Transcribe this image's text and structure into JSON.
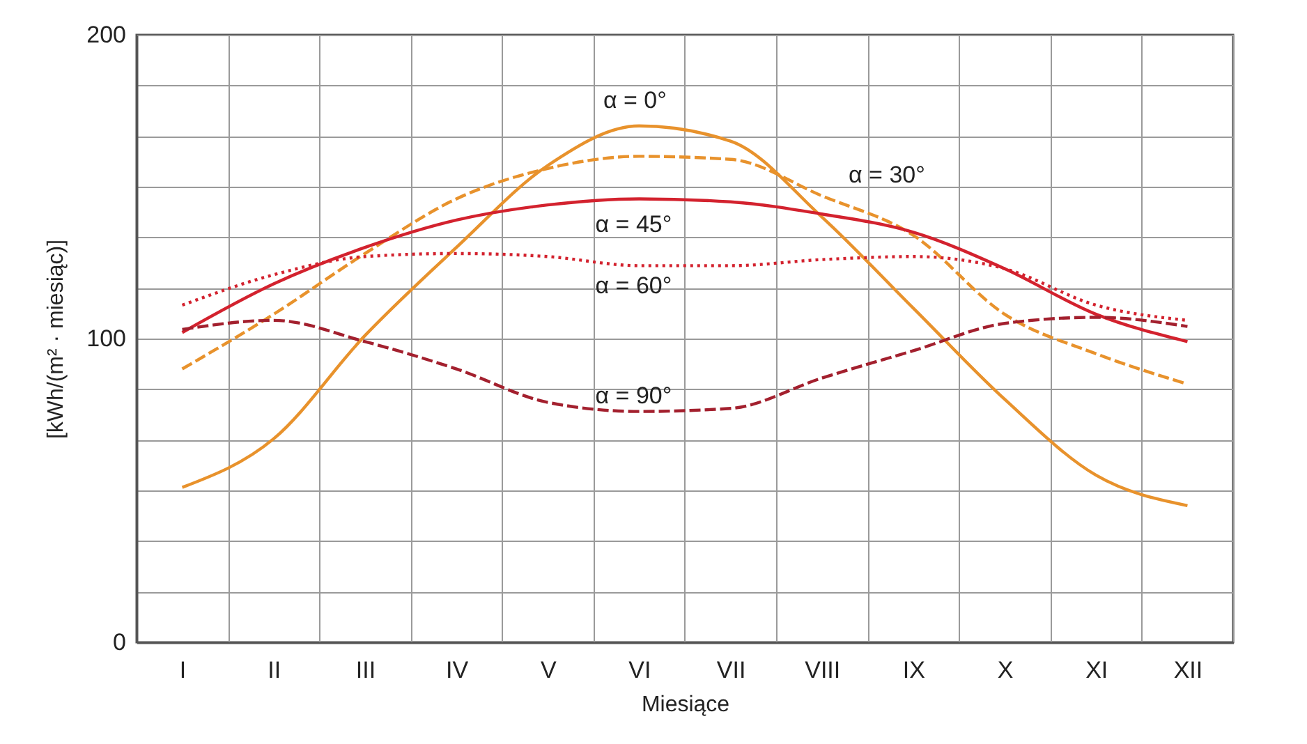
{
  "chart_data": {
    "type": "line",
    "xlabel": "Miesiące",
    "ylabel": "[kWh/(m² · miesiąc)]",
    "categories": [
      "I",
      "II",
      "III",
      "IV",
      "V",
      "VI",
      "VII",
      "VIII",
      "IX",
      "X",
      "XI",
      "XII"
    ],
    "ylim": [
      0,
      200
    ],
    "yticks": [
      0,
      {
        "value": 16.7,
        "label": null
      },
      {
        "value": 33.3,
        "label": null
      },
      {
        "value": 50,
        "label": null
      },
      {
        "value": 66.7,
        "label": null
      },
      {
        "value": 83.3,
        "label": null
      },
      100,
      {
        "value": 116.7,
        "label": null
      },
      {
        "value": 133.3,
        "label": null
      },
      {
        "value": 150,
        "label": null
      },
      {
        "value": 166.7,
        "label": null
      },
      {
        "value": 183.3,
        "label": null
      },
      200
    ],
    "grid": true,
    "series": [
      {
        "name": "α = 0°",
        "color": "#e8922c",
        "line_style": "solid",
        "values": [
          51,
          67,
          101,
          130,
          157,
          170,
          165,
          140,
          110,
          80,
          55,
          45
        ]
      },
      {
        "name": "α = 30°",
        "color": "#e8922c",
        "line_style": "dashed",
        "values": [
          90,
          108,
          128,
          146,
          156,
          160,
          159,
          147,
          134,
          108,
          95,
          85
        ]
      },
      {
        "name": "α = 45°",
        "color": "#d3222e",
        "line_style": "solid",
        "values": [
          102,
          118,
          130,
          139,
          144,
          146,
          145,
          141,
          135,
          123,
          108,
          99
        ]
      },
      {
        "name": "α = 60°",
        "color": "#d3222e",
        "line_style": "dotted",
        "values": [
          111,
          121,
          127,
          128,
          127,
          124,
          124,
          126,
          127,
          123,
          111,
          106
        ]
      },
      {
        "name": "α = 90°",
        "color": "#a3202e",
        "line_style": "dashed",
        "values": [
          103,
          106,
          99,
          90,
          79,
          76,
          77,
          87,
          96,
          105,
          107,
          104
        ]
      }
    ]
  }
}
